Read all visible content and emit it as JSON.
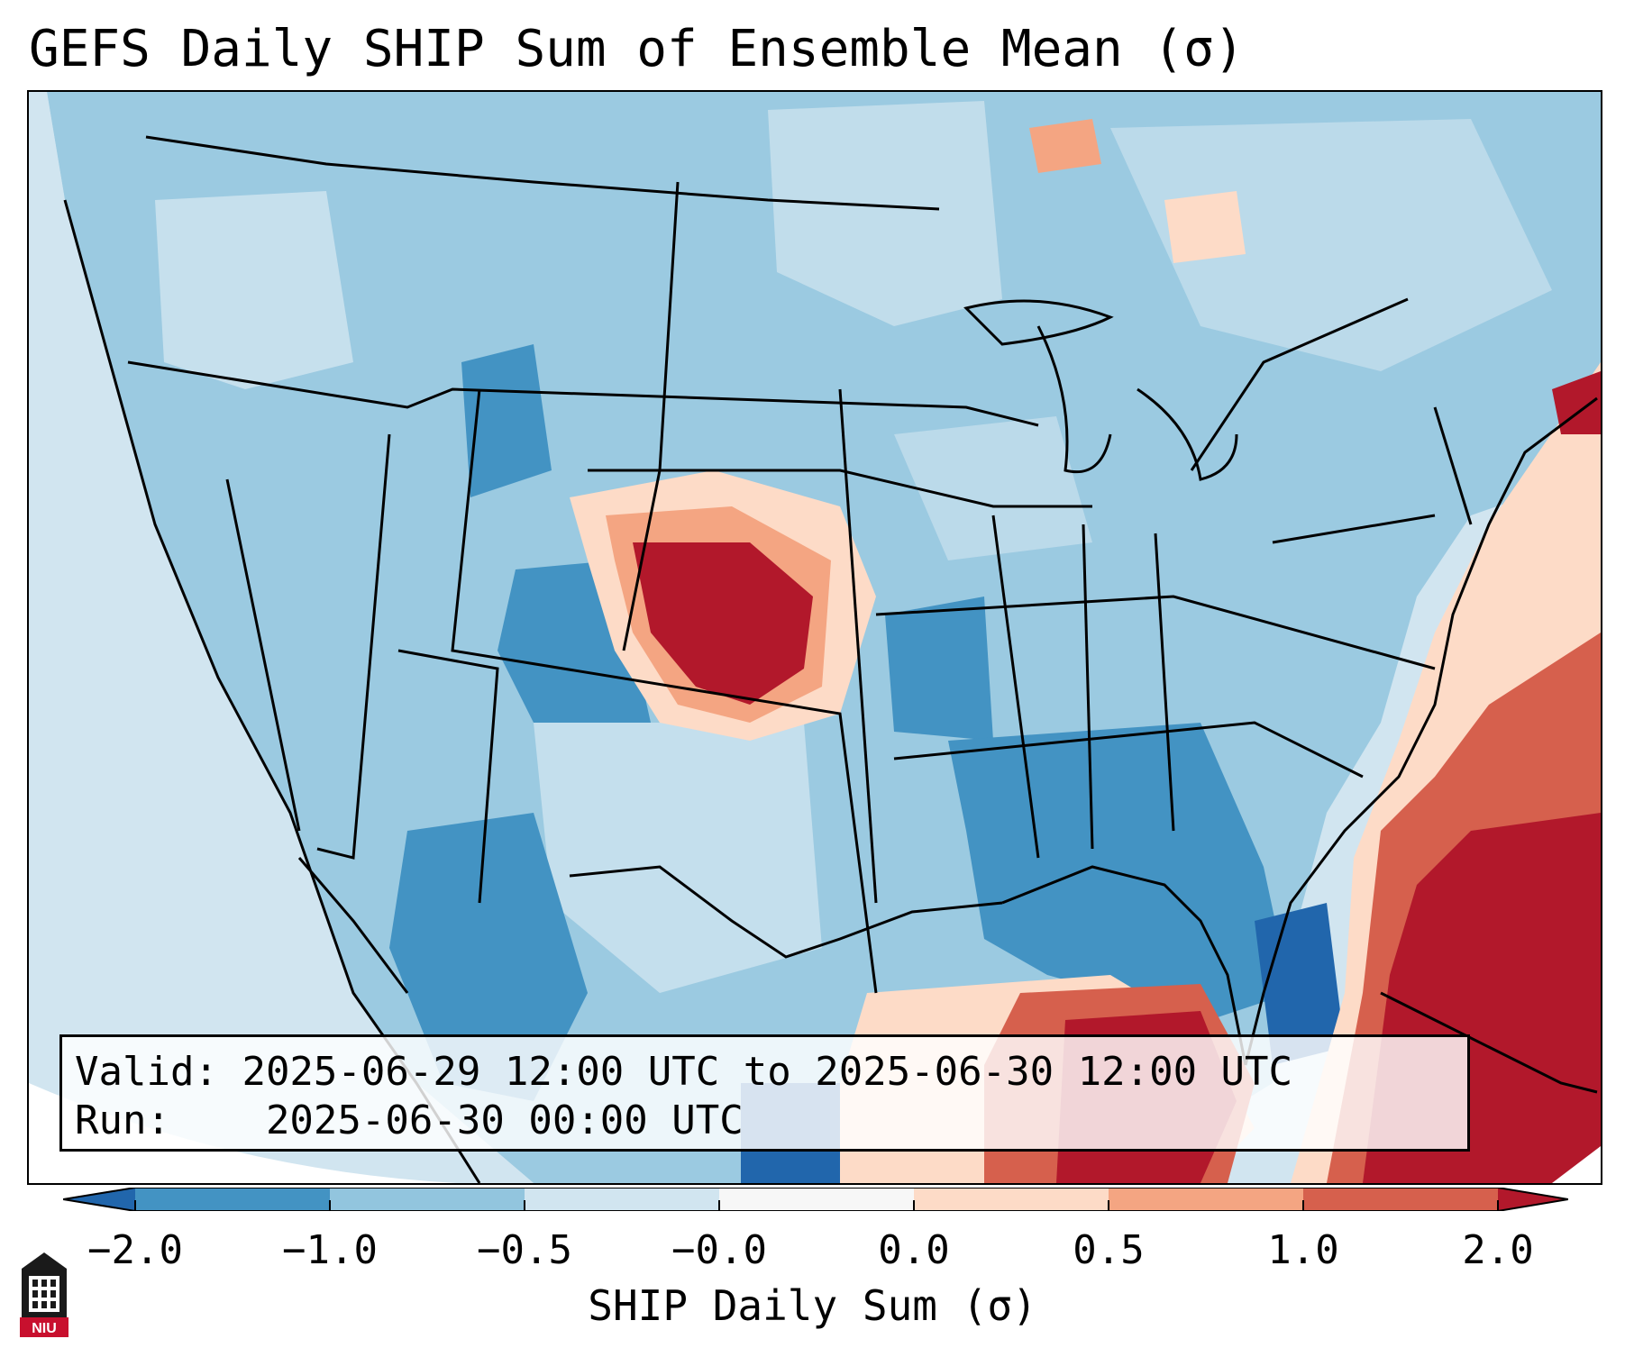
{
  "title": "GEFS Daily SHIP Sum of Ensemble Mean (σ)",
  "info": {
    "valid_label": "Valid:",
    "valid_value": "2025-06-29 12:00 UTC to 2025-06-30 12:00 UTC",
    "run_label": "Run:",
    "run_value": "2025-06-30 00:00 UTC"
  },
  "colorbar": {
    "label": "SHIP Daily Sum (σ)",
    "ticks": [
      "−2.0",
      "−1.0",
      "−0.5",
      "−0.0",
      "0.0",
      "0.5",
      "1.0",
      "2.0"
    ],
    "colors": {
      "under": "#2166ac",
      "bin_m2_m1": "#4393c3",
      "bin_m1_m05": "#92c5de",
      "bin_m05_m0": "#d1e5f0",
      "bin_0_0": "#f7f7f7",
      "bin_0_05": "#fddbc7",
      "bin_05_1": "#f4a582",
      "bin_1_2": "#d6604d",
      "over": "#b2182b"
    }
  },
  "logo": {
    "text": "NIU"
  }
}
